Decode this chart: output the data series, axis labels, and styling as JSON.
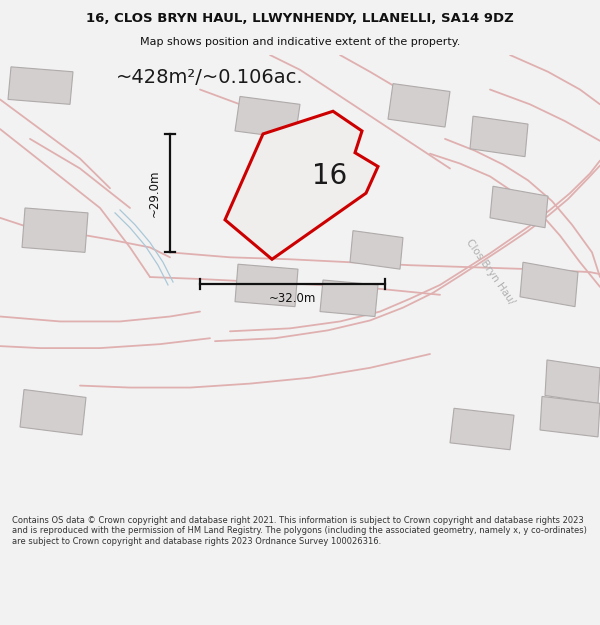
{
  "title": "16, CLOS BRYN HAUL, LLWYNHENDY, LLANELLI, SA14 9DZ",
  "subtitle": "Map shows position and indicative extent of the property.",
  "area_label": "~428m²/~0.106ac.",
  "number_label": "16",
  "dim_horizontal": "~32.0m",
  "dim_vertical": "~29.0m",
  "road_label": "Clos Bryn Hau/",
  "footer": "Contains OS data © Crown copyright and database right 2021. This information is subject to Crown copyright and database rights 2023 and is reproduced with the permission of HM Land Registry. The polygons (including the associated geometry, namely x, y co-ordinates) are subject to Crown copyright and database rights 2023 Ordnance Survey 100026316.",
  "bg_color": "#f2f2f2",
  "map_bg": "#ebe6e6",
  "plot_color": "#cc0000",
  "building_color": "#d3cfcf",
  "building_edge": "#b0aaaa",
  "plot_fill": "#f0eded",
  "dim_line_color": "#111111",
  "text_color": "#111111",
  "road_color": "#e0b0b0",
  "road_text_color": "#b0b0b0",
  "water_color": "#aac8d8",
  "title_fontsize": 9.5,
  "subtitle_fontsize": 8.0,
  "area_fontsize": 14,
  "number_fontsize": 20,
  "dim_fontsize": 8.5,
  "footer_fontsize": 6.0
}
